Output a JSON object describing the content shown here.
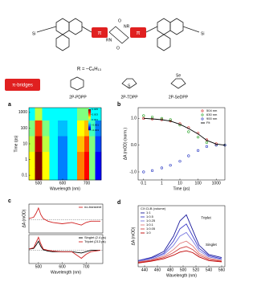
{
  "scheme": {
    "si_left": "Si",
    "si_right": "Si",
    "pi_left": "π",
    "pi_right": "π",
    "o_top": "O",
    "o_bottom": "O",
    "nr_top": "NR",
    "nr_bottom": "RN",
    "r_def": "R = –C₆H₁₃",
    "bridge": "π-bridges",
    "names": [
      "2P-PDPP",
      "2P-TDPP",
      "2P-SeDPP"
    ],
    "s": "S",
    "se": "Se"
  },
  "chart_data": [
    {
      "type": "heatmap",
      "label": "a",
      "xlabel": "Wavelength (nm)",
      "ylabel": "Time (ps)",
      "x": [
        470,
        500,
        530,
        560,
        600,
        640,
        680,
        700,
        720,
        750
      ],
      "y": [
        0.1,
        1,
        10,
        100,
        1000
      ],
      "z": [
        [
          0.002,
          0.005,
          0.002,
          0,
          -0.001,
          0,
          0.003,
          0.004,
          0.001,
          -0.002
        ],
        [
          0.002,
          0.005,
          0.002,
          0,
          -0.001,
          0,
          0.003,
          0.004,
          0.001,
          -0.002
        ],
        [
          0.0015,
          0.0045,
          0.0015,
          0,
          -0.001,
          0,
          0.0025,
          0.0035,
          0.001,
          -0.0015
        ],
        [
          0.001,
          0.0035,
          0.001,
          0,
          -0.0005,
          0,
          0.002,
          0.0025,
          0.0005,
          -0.001
        ],
        [
          0,
          0.0015,
          0,
          0,
          0,
          0,
          0.001,
          0.001,
          0,
          0
        ]
      ],
      "xlim": [
        460,
        760
      ],
      "xticks": [
        500,
        600,
        700
      ],
      "ylim": [
        0.05,
        2000
      ],
      "yticks": [
        0.1,
        1,
        10,
        100,
        1000
      ],
      "ylog": true,
      "zlim": [
        -0.003,
        0.005
      ],
      "zticks": [
        0.005,
        0.003,
        0.001,
        -0.001,
        -0.003
      ]
    },
    {
      "type": "line",
      "label": "b",
      "xlabel": "Time (ps)",
      "ylabel": "ΔA (mOD) (norm.)",
      "xlog": true,
      "x": [
        0.1,
        0.3,
        1,
        3,
        10,
        30,
        100,
        300,
        1000,
        3000
      ],
      "xlim": [
        0.05,
        3000
      ],
      "xticks": [
        0.1,
        1,
        10,
        100,
        1000
      ],
      "ylim": [
        -1.3,
        1.4
      ],
      "yticks": [
        {
          "value": 1,
          "label": "1.0"
        },
        {
          "value": 0,
          "label": "0.0"
        },
        {
          "value": -1,
          "label": "-1.0"
        }
      ],
      "legend": "top-right",
      "series": [
        {
          "name": "504 nm",
          "color": "#d02020",
          "marker": "circle",
          "values": [
            1,
            0.98,
            0.95,
            0.9,
            0.8,
            0.65,
            0.45,
            0.2,
            0.05,
            0
          ]
        },
        {
          "name": "630 nm",
          "color": "#20a020",
          "marker": "circle",
          "values": [
            1.1,
            1.05,
            1,
            0.95,
            0.75,
            0.5,
            0.3,
            0.1,
            0,
            0
          ]
        },
        {
          "name": "900 nm",
          "color": "#2030c0",
          "marker": "circle",
          "values": [
            -1,
            -0.95,
            -0.85,
            -0.75,
            -0.6,
            -0.4,
            -0.2,
            -0.05,
            0,
            0
          ]
        },
        {
          "name": "Fit",
          "color": "#000000",
          "values": [
            1,
            0.98,
            0.95,
            0.9,
            0.78,
            0.62,
            0.42,
            0.18,
            0.04,
            0
          ]
        }
      ]
    },
    {
      "type": "line",
      "label": "c",
      "x": [
        460,
        480,
        490,
        500,
        510,
        520,
        540,
        560,
        600,
        640,
        680,
        700,
        720,
        760
      ],
      "xlim": [
        460,
        770
      ],
      "ylim": [
        -1,
        1.2
      ],
      "zero_line": true,
      "legend": "top-right",
      "series": [
        {
          "name": "no-transient",
          "color": "#d02020",
          "values": [
            0.1,
            0.2,
            0.5,
            0.9,
            0.4,
            0.1,
            -0.1,
            -0.2,
            -0.3,
            -0.2,
            -0.4,
            -0.2,
            -0.1,
            -0.1
          ]
        }
      ]
    },
    {
      "type": "line",
      "xlabel": "Wavelength (nm)",
      "ylabel": "ΔA (mOD)",
      "x": [
        460,
        480,
        490,
        500,
        510,
        520,
        540,
        560,
        600,
        640,
        680,
        700,
        720,
        760
      ],
      "xlim": [
        460,
        770
      ],
      "xticks": [
        500,
        600,
        700
      ],
      "ylim": [
        -1,
        1.2
      ],
      "zero_line": true,
      "legend": "top-right",
      "series": [
        {
          "name": "Singlet (2.4 ps)",
          "color": "#000000",
          "values": [
            0.1,
            0.15,
            0.4,
            0.7,
            0.3,
            0.05,
            -0.05,
            -0.1,
            -0.1,
            -0.1,
            -0.2,
            -0.1,
            0,
            0
          ]
        },
        {
          "name": "Triplet (213 ps)",
          "color": "#d02020",
          "values": [
            0.1,
            0.2,
            0.6,
            1,
            0.5,
            0.1,
            0,
            -0.05,
            -0.1,
            -0.1,
            -0.6,
            -0.3,
            -0.1,
            0
          ]
        }
      ]
    },
    {
      "type": "line",
      "label": "d",
      "xlabel": "Wavelength (nm)",
      "ylabel": "ΔA (mOD)",
      "legend_title": "CX:CLB (volume)",
      "legend": "top-left",
      "x": [
        430,
        450,
        470,
        485,
        495,
        505,
        515,
        525,
        540,
        560
      ],
      "xlim": [
        430,
        565
      ],
      "xticks": [
        440,
        460,
        480,
        500,
        520,
        540,
        560
      ],
      "ylim": [
        0,
        10
      ],
      "annotations": [
        {
          "text": "Triplet",
          "x": 528,
          "y": 8
        },
        {
          "text": "Singlet",
          "x": 535,
          "y": 3.6
        }
      ],
      "series": [
        {
          "name": "1:1",
          "color": "#1a1a9c",
          "values": [
            1,
            1.5,
            2.5,
            5,
            7.5,
            8.5,
            6,
            3.5,
            2,
            1.5
          ]
        },
        {
          "name": "1:0.5",
          "color": "#3a3ac8",
          "values": [
            1,
            1.4,
            2.2,
            4.2,
            6.2,
            7,
            5,
            3,
            1.8,
            1.3
          ]
        },
        {
          "name": "1:0.25",
          "color": "#7a7ae0",
          "values": [
            0.9,
            1.2,
            2,
            3.5,
            5,
            5.6,
            4.2,
            2.6,
            1.6,
            1.2
          ]
        },
        {
          "name": "1:0.1",
          "color": "#e07a7a",
          "values": [
            0.8,
            1.1,
            1.7,
            2.8,
            3.8,
            4.2,
            3.4,
            2.2,
            1.4,
            1
          ]
        },
        {
          "name": "1:0.05",
          "color": "#d04040",
          "values": [
            0.7,
            1,
            1.5,
            2.3,
            3,
            3.3,
            2.8,
            1.9,
            1.2,
            0.9
          ]
        },
        {
          "name": "1:0",
          "color": "#c00000",
          "values": [
            0.6,
            0.9,
            1.3,
            1.9,
            2.4,
            2.6,
            2.3,
            1.6,
            1,
            0.8
          ]
        }
      ]
    }
  ]
}
